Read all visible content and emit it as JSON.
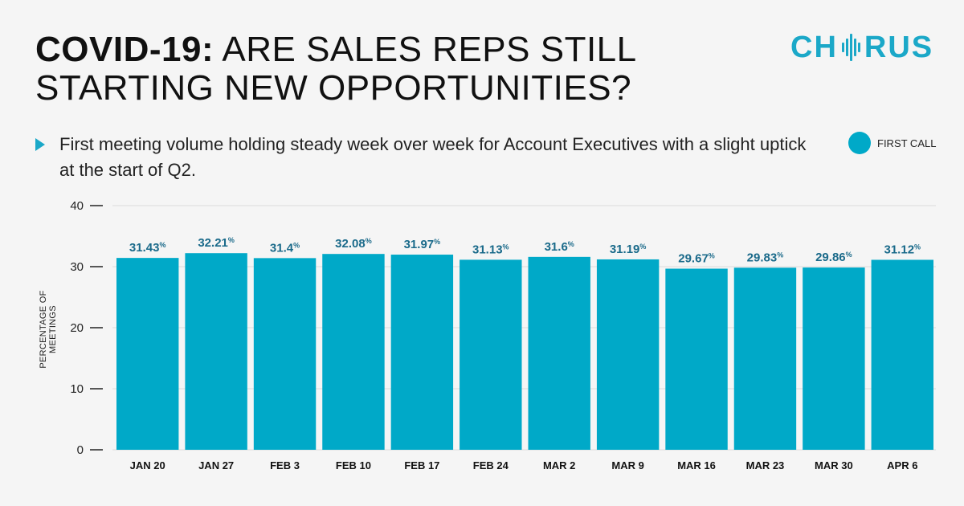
{
  "header": {
    "title_bold": "COVID-19:",
    "title_rest": " ARE SALES REPS STILL STARTING NEW OPPORTUNITIES?",
    "logo_text": "CHORUS",
    "logo_left": "CH",
    "logo_right": "RUS"
  },
  "subtitle": "First meeting volume holding steady week over week for Account Executives with a slight uptick at the start of Q2.",
  "legend": {
    "label": "FIRST CALL",
    "color": "#00a9c8"
  },
  "chart_data": {
    "type": "bar",
    "title": "COVID-19: ARE SALES REPS STILL STARTING NEW OPPORTUNITIES?",
    "xlabel": "",
    "ylabel": "PERCENTAGE OF MEETINGS",
    "ylim": [
      0,
      40
    ],
    "yticks": [
      0,
      10,
      20,
      30,
      40
    ],
    "categories": [
      "JAN 20",
      "JAN 27",
      "FEB 3",
      "FEB 10",
      "FEB 17",
      "FEB 24",
      "MAR 2",
      "MAR 9",
      "MAR 16",
      "MAR 23",
      "MAR 30",
      "APR 6"
    ],
    "series": [
      {
        "name": "FIRST CALL",
        "values": [
          31.43,
          32.21,
          31.4,
          32.08,
          31.97,
          31.13,
          31.6,
          31.19,
          29.67,
          29.83,
          29.86,
          31.12
        ],
        "labels": [
          "31.43",
          "32.21",
          "31.4",
          "32.08",
          "31.97",
          "31.13",
          "31.6",
          "31.19",
          "29.67",
          "29.83",
          "29.86",
          "31.12"
        ]
      }
    ],
    "value_suffix": "%",
    "bar_color": "#00a9c8",
    "label_color": "#1a6a8a",
    "grid": true
  }
}
